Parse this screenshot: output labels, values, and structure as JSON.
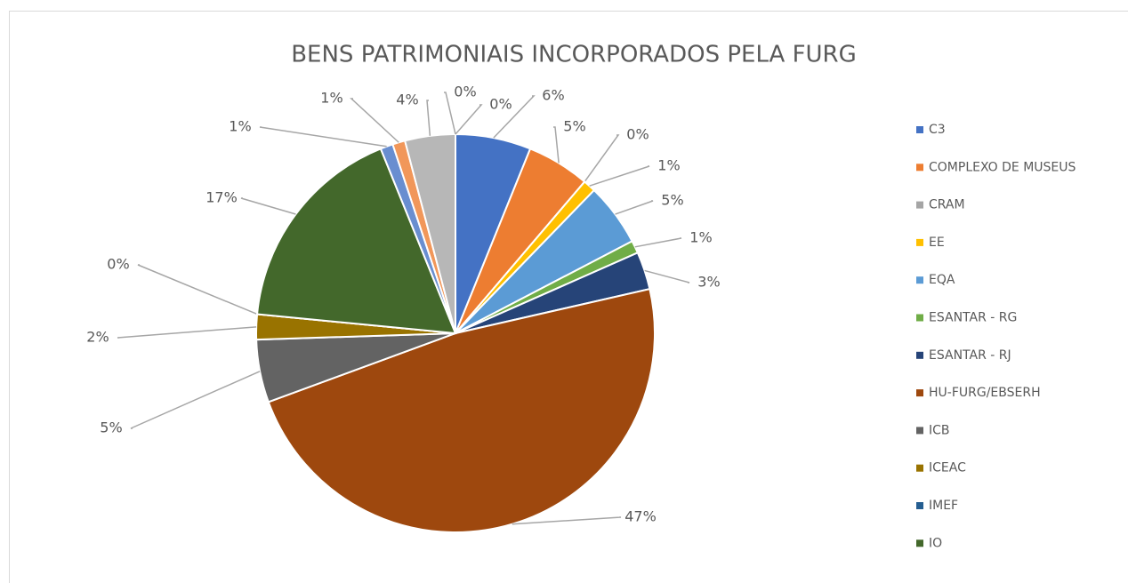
{
  "chart_data": {
    "type": "pie",
    "title": "BENS PATRIMONIAIS INCORPORADOS PELA FURG",
    "categories": [
      "C3",
      "COMPLEXO DE MUSEUS",
      "CRAM",
      "EE",
      "EQA",
      "ESANTAR - RG",
      "ESANTAR - RJ",
      "HU-FURG/EBSERH",
      "ICB",
      "ICEAC",
      "IMEF",
      "IO",
      null,
      null,
      null,
      null,
      null
    ],
    "values": [
      6,
      5,
      0,
      1,
      5,
      1,
      3,
      47,
      5,
      2,
      0,
      17,
      1,
      1,
      4,
      0,
      0
    ],
    "value_labels": [
      "6%",
      "5%",
      "0%",
      "1%",
      "5%",
      "1%",
      "3%",
      "47%",
      "5%",
      "2%",
      "0%",
      "17%",
      "1%",
      "1%",
      "4%",
      "0%",
      "0%"
    ],
    "colors": [
      "#4472c4",
      "#ed7d31",
      "#a5a5a5",
      "#ffc000",
      "#5b9bd5",
      "#70ad47",
      "#264478",
      "#9e480e",
      "#636363",
      "#997300",
      "#255e91",
      "#43682b",
      "#698ed0",
      "#f1975a",
      "#b7b7b7",
      "#ffcd33",
      "#7cafdd"
    ],
    "legend": "right"
  }
}
